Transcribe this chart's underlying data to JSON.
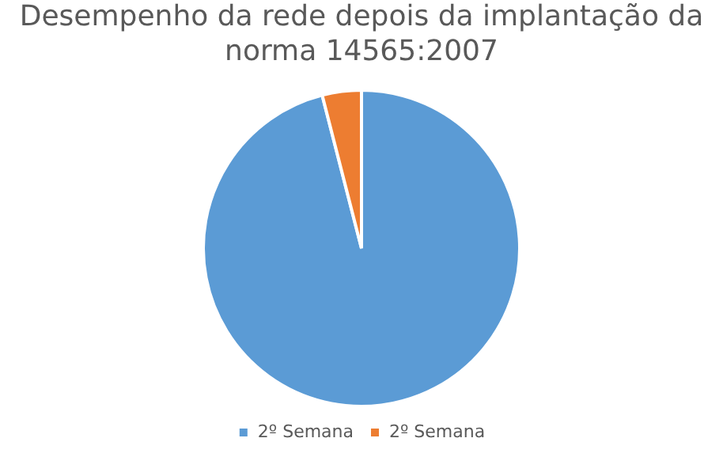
{
  "chart_data": {
    "type": "pie",
    "title": "Desempenho da rede depois da implantação da norma 14565:2007",
    "categories": [
      "2º Semana",
      "2º Semana"
    ],
    "values": [
      96,
      4
    ],
    "colors": [
      "#5b9bd5",
      "#ed7d31"
    ],
    "legend": "bottom"
  }
}
